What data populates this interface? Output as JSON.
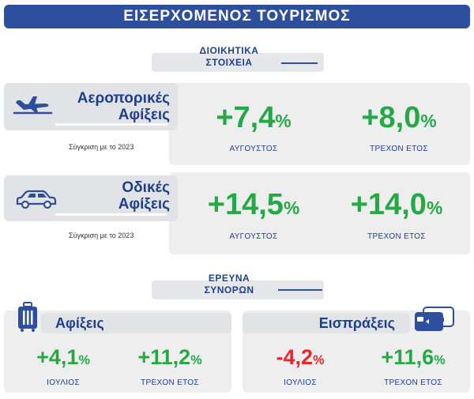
{
  "title": "ΕΙΣΕΡΧΟΜΕΝΟΣ ΤΟΥΡΙΣΜΟΣ",
  "section_admin": {
    "line1": "ΔΙΟΙΚΗΤΙΚΑ",
    "line2": "ΣΤΟΙΧΕΙΑ"
  },
  "section_survey": {
    "line1": "ΕΡΕΥΝΑ",
    "line2": "ΣΥΝΟΡΩΝ"
  },
  "colors": {
    "brand": "#2d4f9e",
    "positive": "#25a845",
    "negative": "#e8262b",
    "panel": "#eeeeee"
  },
  "air": {
    "icon": "airplane-icon",
    "label1": "Αεροπορικές",
    "label2": "Αφίξεις",
    "compare": "Σύγκριση με το 2023",
    "stats": [
      {
        "value": "+7,4",
        "unit": "%",
        "caption": "ΑΥΓΟΥΣΤΟΣ"
      },
      {
        "value": "+8,0",
        "unit": "%",
        "caption": "ΤΡΕΧΟΝ ΕΤΟΣ"
      }
    ]
  },
  "road": {
    "icon": "car-icon",
    "label1": "Οδικές",
    "label2": "Αφίξεις",
    "compare": "Σύγκριση με το 2023",
    "stats": [
      {
        "value": "+14,5",
        "unit": "%",
        "caption": "ΑΥΓΟΥΣΤΟΣ"
      },
      {
        "value": "+14,0",
        "unit": "%",
        "caption": "ΤΡΕΧΟΝ ΕΤΟΣ"
      }
    ]
  },
  "arrivals": {
    "icon": "suitcase-icon",
    "label": "Αφίξεις",
    "stats": [
      {
        "value": "+4,1",
        "unit": "%",
        "caption": "ΙΟΥΛΙΟΣ"
      },
      {
        "value": "+11,2",
        "unit": "%",
        "caption": "ΤΡΕΧΟΝ ΕΤΟΣ"
      }
    ]
  },
  "receipts": {
    "icon": "credit-card-icon",
    "label": "Εισπράξεις",
    "stats": [
      {
        "value": "-4,2",
        "unit": "%",
        "caption": "ΙΟΥΛΙΟΣ"
      },
      {
        "value": "+11,6",
        "unit": "%",
        "caption": "ΤΡΕΧΟΝ ΕΤΟΣ"
      }
    ]
  }
}
